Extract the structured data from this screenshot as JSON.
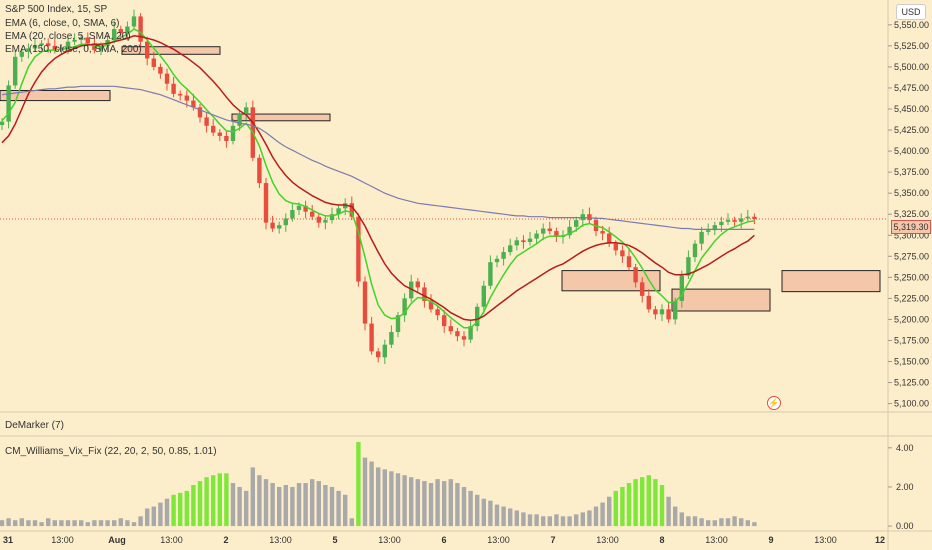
{
  "header": {
    "title": "S&P 500 Index, 15, SP",
    "legend": [
      {
        "label": "EMA (6, close, 0, SMA, 6)"
      },
      {
        "label": "EMA (20, close, 5, SMA, 20)"
      },
      {
        "label": "EMA (150, close, 0, SMA, 200)"
      }
    ]
  },
  "currency_button": "USD",
  "last_price_label": "5,319.30",
  "colors": {
    "background": "#fdeecb",
    "up": "#4caf50",
    "down": "#e74c3c",
    "ema6": "#3fd427",
    "ema20": "#b71c1c",
    "ema150": "#7b7bb0",
    "vix_high": "#7ee83a",
    "vix_normal": "#a9a9a9",
    "zone_fill": "#f4c7a8"
  },
  "panels": {
    "demarker": {
      "label": "DeMarker (7)"
    },
    "vix": {
      "label": "CM_Williams_Vix_Fix (22, 20, 2, 50, 0.85, 1.01)"
    }
  },
  "chart_data": [
    {
      "type": "candlestick",
      "title": "S&P 500 Index, 15, SP",
      "x_labels": [
        "31",
        "13:00",
        "Aug",
        "13:00",
        "2",
        "13:00",
        "5",
        "13:00",
        "6",
        "13:00",
        "7",
        "13:00",
        "8",
        "13:00",
        "9",
        "13:00",
        "12"
      ],
      "y_ticks": [
        5550,
        5525,
        5500,
        5475,
        5450,
        5425,
        5400,
        5375,
        5350,
        5325,
        5300,
        5275,
        5250,
        5225,
        5200,
        5175,
        5150,
        5125,
        5100
      ],
      "y_tick_labels": [
        "5,550.00",
        "5,525.00",
        "5,500.00",
        "5,475.00",
        "5,450.00",
        "5,425.00",
        "5,400.00",
        "5,375.00",
        "5,350.00",
        "5,325.00",
        "5,300.00",
        "5,275.00",
        "5,250.00",
        "5,225.00",
        "5,200.00",
        "5,175.00",
        "5,150.00",
        "5,125.00",
        "5,100.00"
      ],
      "ylim": [
        5090,
        5570
      ],
      "last_price": 5319.3,
      "close_series": [
        5435,
        5478,
        5512,
        5518,
        5522,
        5526,
        5528,
        5525,
        5520,
        5523,
        5530,
        5532,
        5535,
        5528,
        5520,
        5525,
        5532,
        5545,
        5540,
        5548,
        5560,
        5530,
        5510,
        5500,
        5492,
        5480,
        5468,
        5466,
        5460,
        5452,
        5440,
        5430,
        5422,
        5418,
        5412,
        5430,
        5445,
        5452,
        5392,
        5362,
        5315,
        5308,
        5312,
        5320,
        5330,
        5335,
        5328,
        5322,
        5315,
        5318,
        5325,
        5332,
        5338,
        5322,
        5245,
        5195,
        5162,
        5155,
        5170,
        5185,
        5205,
        5225,
        5245,
        5238,
        5222,
        5212,
        5205,
        5192,
        5186,
        5180,
        5176,
        5192,
        5215,
        5240,
        5268,
        5272,
        5280,
        5288,
        5294,
        5292,
        5296,
        5302,
        5308,
        5305,
        5298,
        5300,
        5310,
        5318,
        5325,
        5318,
        5305,
        5302,
        5290,
        5282,
        5275,
        5262,
        5244,
        5228,
        5212,
        5206,
        5212,
        5200,
        5222,
        5252,
        5274,
        5290,
        5304,
        5306,
        5312,
        5316,
        5318,
        5316,
        5320,
        5322,
        5319.3
      ],
      "series": [
        {
          "name": "EMA (6, close, 0, SMA, 6)",
          "color": "#3fd427",
          "values": [
            5436,
            5445,
            5458,
            5480,
            5500,
            5512,
            5518,
            5520,
            5520,
            5521,
            5522,
            5524,
            5527,
            5527,
            5525,
            5524,
            5526,
            5531,
            5535,
            5539,
            5545,
            5541,
            5532,
            5522,
            5513,
            5503,
            5491,
            5481,
            5474,
            5466,
            5458,
            5449,
            5441,
            5432,
            5424,
            5423,
            5427,
            5433,
            5422,
            5406,
            5383,
            5363,
            5349,
            5341,
            5338,
            5337,
            5334,
            5330,
            5326,
            5323,
            5323,
            5325,
            5329,
            5327,
            5304,
            5274,
            5242,
            5217,
            5205,
            5201,
            5202,
            5208,
            5219,
            5226,
            5225,
            5221,
            5216,
            5209,
            5202,
            5196,
            5190,
            5190,
            5197,
            5209,
            5226,
            5240,
            5253,
            5265,
            5275,
            5280,
            5285,
            5290,
            5296,
            5299,
            5299,
            5299,
            5302,
            5306,
            5312,
            5314,
            5311,
            5309,
            5304,
            5298,
            5292,
            5284,
            5273,
            5261,
            5247,
            5235,
            5228,
            5220,
            5221,
            5229,
            5243,
            5258,
            5273,
            5283,
            5293,
            5301,
            5307,
            5310,
            5313,
            5316,
            5317
          ]
        },
        {
          "name": "EMA (20, close, 5, SMA, 20)",
          "color": "#b71c1c",
          "values": [
            5410,
            5418,
            5432,
            5450,
            5468,
            5482,
            5494,
            5503,
            5510,
            5515,
            5519,
            5522,
            5525,
            5526,
            5527,
            5527,
            5528,
            5530,
            5532,
            5534,
            5537,
            5536,
            5534,
            5532,
            5529,
            5525,
            5521,
            5516,
            5511,
            5505,
            5499,
            5491,
            5483,
            5474,
            5464,
            5455,
            5448,
            5443,
            5434,
            5422,
            5408,
            5393,
            5381,
            5371,
            5363,
            5357,
            5352,
            5347,
            5343,
            5339,
            5337,
            5336,
            5336,
            5334,
            5324,
            5311,
            5295,
            5280,
            5266,
            5255,
            5247,
            5240,
            5236,
            5232,
            5228,
            5224,
            5219,
            5214,
            5208,
            5204,
            5200,
            5199,
            5200,
            5204,
            5210,
            5216,
            5222,
            5228,
            5234,
            5239,
            5244,
            5249,
            5254,
            5259,
            5263,
            5266,
            5271,
            5276,
            5281,
            5285,
            5288,
            5290,
            5291,
            5291,
            5290,
            5288,
            5284,
            5279,
            5273,
            5267,
            5262,
            5256,
            5253,
            5253,
            5254,
            5257,
            5261,
            5265,
            5270,
            5275,
            5280,
            5284,
            5289,
            5293,
            5300
          ]
        },
        {
          "name": "EMA (150, close, 0, SMA, 200)",
          "color": "#7b7bb0",
          "values": [
            5467,
            5468,
            5469,
            5470,
            5471,
            5472,
            5473,
            5474,
            5474,
            5475,
            5476,
            5476,
            5477,
            5477,
            5477,
            5477,
            5477,
            5477,
            5476,
            5475,
            5474,
            5473,
            5471,
            5469,
            5467,
            5464,
            5461,
            5458,
            5455,
            5452,
            5449,
            5446,
            5443,
            5440,
            5437,
            5435,
            5433,
            5432,
            5430,
            5427,
            5422,
            5416,
            5410,
            5405,
            5401,
            5397,
            5393,
            5389,
            5386,
            5382,
            5379,
            5376,
            5373,
            5370,
            5366,
            5362,
            5358,
            5354,
            5350,
            5347,
            5344,
            5342,
            5340,
            5338,
            5337,
            5336,
            5335,
            5334,
            5333,
            5332,
            5331,
            5330,
            5329,
            5328,
            5327,
            5326,
            5325,
            5324,
            5323,
            5323,
            5322,
            5322,
            5322,
            5321,
            5321,
            5321,
            5321,
            5321,
            5321,
            5321,
            5320,
            5320,
            5319,
            5318,
            5317,
            5316,
            5315,
            5314,
            5313,
            5312,
            5311,
            5310,
            5309,
            5308,
            5308,
            5307,
            5307,
            5307,
            5307,
            5307,
            5307,
            5307,
            5307,
            5307,
            5307
          ]
        }
      ],
      "zones": [
        {
          "from": 5460,
          "to": 5472
        },
        {
          "from": 5515,
          "to": 5524
        },
        {
          "from": 5436,
          "to": 5444
        },
        {
          "from": 5234,
          "to": 5258
        },
        {
          "from": 5210,
          "to": 5236
        },
        {
          "from": 5233,
          "to": 5258
        }
      ]
    },
    {
      "type": "bar",
      "title": "CM_Williams_Vix_Fix (22, 20, 2, 50, 0.85, 1.01)",
      "y_ticks": [
        0,
        2,
        4
      ],
      "y_tick_labels": [
        "0.00",
        "2.00",
        "4.00"
      ],
      "ylim": [
        -0.2,
        4.4
      ],
      "values": [
        0.3,
        0.4,
        0.3,
        0.4,
        0.3,
        0.3,
        0.2,
        0.4,
        0.3,
        0.3,
        0.3,
        0.3,
        0.3,
        0.2,
        0.3,
        0.3,
        0.3,
        0.3,
        0.4,
        0.3,
        0.2,
        0.5,
        0.9,
        1.0,
        1.2,
        1.4,
        1.6,
        1.7,
        1.8,
        2.1,
        2.3,
        2.5,
        2.6,
        2.7,
        2.7,
        2.2,
        2.0,
        1.8,
        3.0,
        2.6,
        2.4,
        2.2,
        2.0,
        2.1,
        2.0,
        2.2,
        2.2,
        2.4,
        2.3,
        2.1,
        2.0,
        1.8,
        1.6,
        0.4,
        4.3,
        3.5,
        3.3,
        3.0,
        2.9,
        2.8,
        2.7,
        2.6,
        2.5,
        2.4,
        2.3,
        2.2,
        2.4,
        2.3,
        2.4,
        2.2,
        2.0,
        1.8,
        1.6,
        1.4,
        1.3,
        1.1,
        1.0,
        0.9,
        0.8,
        0.7,
        0.6,
        0.6,
        0.5,
        0.5,
        0.6,
        0.5,
        0.5,
        0.6,
        0.7,
        0.8,
        1.0,
        1.2,
        1.5,
        1.8,
        2.0,
        2.2,
        2.4,
        2.5,
        2.6,
        2.4,
        2.1,
        1.5,
        1.0,
        0.7,
        0.5,
        0.5,
        0.4,
        0.3,
        0.3,
        0.4,
        0.4,
        0.5,
        0.4,
        0.3,
        0.2
      ],
      "highlight_threshold": 1.6
    }
  ]
}
